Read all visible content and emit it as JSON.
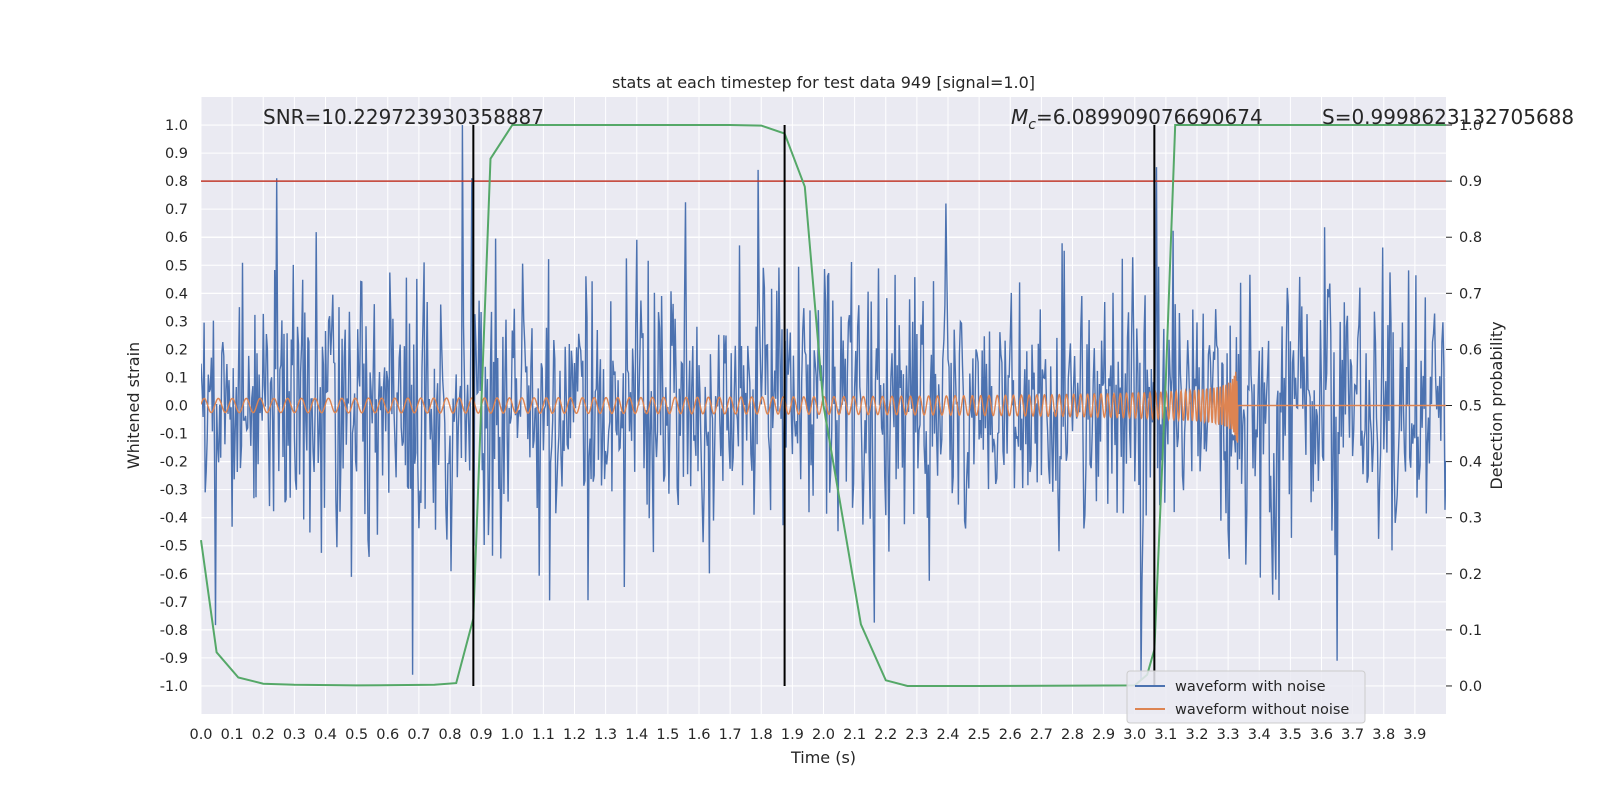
{
  "chart_data": {
    "type": "line",
    "title": "stats at each timestep for test data 949 [signal=1.0]",
    "xlabel": "Time (s)",
    "ylabel": "Whitened strain",
    "y2label": "Detection probability",
    "xlim": [
      0.0,
      4.0
    ],
    "ylim": [
      -1.1,
      1.1
    ],
    "y2lim": [
      -0.05,
      1.05
    ],
    "xticks": [
      "0.0",
      "0.1",
      "0.2",
      "0.3",
      "0.4",
      "0.5",
      "0.6",
      "0.7",
      "0.8",
      "0.9",
      "1.0",
      "1.1",
      "1.2",
      "1.3",
      "1.4",
      "1.5",
      "1.6",
      "1.7",
      "1.8",
      "1.9",
      "2.0",
      "2.1",
      "2.2",
      "2.3",
      "2.4",
      "2.5",
      "2.6",
      "2.7",
      "2.8",
      "2.9",
      "3.0",
      "3.1",
      "3.2",
      "3.3",
      "3.4",
      "3.5",
      "3.6",
      "3.7",
      "3.8",
      "3.9"
    ],
    "yticks": [
      "1.0",
      "0.9",
      "0.8",
      "0.7",
      "0.6",
      "0.5",
      "0.4",
      "0.3",
      "0.2",
      "0.1",
      "0.0",
      "-0.1",
      "-0.2",
      "-0.3",
      "-0.4",
      "-0.5",
      "-0.6",
      "-0.7",
      "-0.8",
      "-0.9",
      "-1.0"
    ],
    "y2ticks": [
      "1.0",
      "0.9",
      "0.8",
      "0.7",
      "0.6",
      "0.5",
      "0.4",
      "0.3",
      "0.2",
      "0.1",
      "0.0"
    ],
    "annotations": {
      "snr": "SNR=10.229723930358887",
      "mc_symbol": "M",
      "mc_sub": "c",
      "mc_value": "=6.089909076690674",
      "s": "S=0.9998623132705688"
    },
    "threshold": {
      "y2": 0.9,
      "color": "#c0392b"
    },
    "vertical_lines_x": [
      0.875,
      1.875,
      3.063
    ],
    "series": [
      {
        "name": "waveform with noise",
        "color": "#4c72b0",
        "kind": "noise",
        "axis": "left",
        "amplitude_std": 0.24,
        "amplitude_range": [
          -1.0,
          1.0
        ],
        "peaks": [
          [
            0.84,
            1.0
          ],
          [
            0.87,
            0.81
          ],
          [
            1.79,
            0.84
          ],
          [
            3.07,
            0.85
          ],
          [
            3.02,
            -0.98
          ],
          [
            0.68,
            -0.96
          ],
          [
            3.65,
            -0.91
          ]
        ]
      },
      {
        "name": "waveform without noise",
        "color": "#dd8452",
        "kind": "chirp",
        "axis": "left",
        "merger_time": 3.33,
        "base_amplitude": 0.025,
        "peak_amplitude": 0.26,
        "base_frequency_hz": 22
      },
      {
        "name": "detection probability",
        "color": "#55a868",
        "axis": "right",
        "x": [
          0.0,
          0.05,
          0.12,
          0.2,
          0.3,
          0.5,
          0.75,
          0.82,
          0.875,
          0.93,
          1.0,
          1.2,
          1.7,
          1.8,
          1.875,
          1.94,
          2.0,
          2.12,
          2.2,
          2.27,
          2.5,
          3.0,
          3.04,
          3.063,
          3.1,
          3.13,
          3.5,
          4.0
        ],
        "y": [
          0.26,
          0.06,
          0.015,
          0.004,
          0.002,
          0.001,
          0.002,
          0.005,
          0.12,
          0.94,
          1.0,
          1.0,
          1.0,
          0.999,
          0.985,
          0.89,
          0.5,
          0.11,
          0.01,
          0.0,
          0.0,
          0.001,
          0.02,
          0.065,
          0.55,
          1.0,
          1.0,
          1.0
        ]
      }
    ],
    "legend": {
      "position": "bottom-right",
      "entries": [
        "waveform with noise",
        "waveform without noise"
      ]
    }
  }
}
